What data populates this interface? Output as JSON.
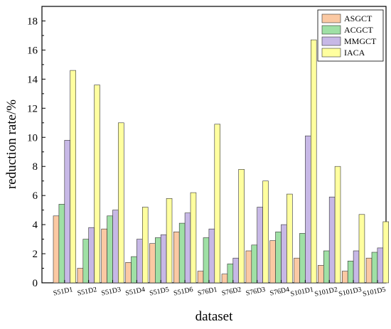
{
  "chart_data": {
    "type": "bar",
    "title": "",
    "xlabel": "dataset",
    "ylabel": "reduction rate/%",
    "ylim": [
      0,
      19
    ],
    "yticks": [
      0,
      2,
      4,
      6,
      8,
      10,
      12,
      14,
      16,
      18
    ],
    "grid": false,
    "legend_position": "top-right",
    "categories": [
      "S51D1",
      "S51D2",
      "S51D3",
      "S51D4",
      "S51D5",
      "S51D6",
      "S76D1",
      "S76D2",
      "S76D3",
      "S76D4",
      "S101D1",
      "S101D2",
      "S101D3",
      "S101D5"
    ],
    "series": [
      {
        "name": "ASGCT",
        "color": "#fbc9a3",
        "values": [
          4.6,
          1.0,
          3.7,
          1.4,
          2.7,
          3.5,
          0.8,
          0.6,
          2.2,
          2.9,
          1.7,
          1.2,
          0.8,
          1.7
        ]
      },
      {
        "name": "ACGCT",
        "color": "#9fe0a5",
        "values": [
          5.4,
          3.0,
          4.6,
          1.8,
          3.1,
          4.1,
          3.1,
          1.3,
          2.6,
          3.5,
          3.4,
          2.2,
          1.5,
          2.1
        ]
      },
      {
        "name": "MMGCT",
        "color": "#c7b8e6",
        "values": [
          9.8,
          3.8,
          5.0,
          3.0,
          3.3,
          4.8,
          3.7,
          1.7,
          5.2,
          4.0,
          10.1,
          5.9,
          2.2,
          2.4
        ]
      },
      {
        "name": "IACA",
        "color": "#ffff9f",
        "values": [
          14.6,
          13.6,
          11.0,
          5.2,
          5.8,
          6.2,
          10.9,
          7.8,
          7.0,
          6.1,
          16.7,
          8.0,
          4.7,
          4.2
        ]
      }
    ]
  }
}
